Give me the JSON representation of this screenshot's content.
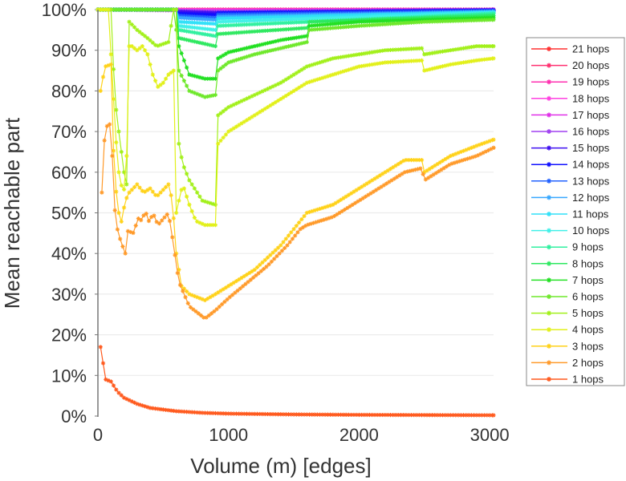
{
  "chart_data": {
    "type": "line",
    "title": "",
    "xlabel": "Volume (m) [edges]",
    "ylabel": "Mean reachable part",
    "xlim": [
      0,
      3030
    ],
    "ylim": [
      0,
      100
    ],
    "x_ticks": [
      "0",
      "1000",
      "2000",
      "3000"
    ],
    "x_tick_values": [
      0,
      1000,
      2000,
      3000
    ],
    "y_ticks": [
      "0%",
      "10%",
      "20%",
      "30%",
      "40%",
      "50%",
      "60%",
      "70%",
      "80%",
      "90%",
      "100%"
    ],
    "y_tick_values": [
      0,
      10,
      20,
      30,
      40,
      50,
      60,
      70,
      80,
      90,
      100
    ],
    "grid": "horizontal",
    "legend_position": "right",
    "series": [
      {
        "name": "1 hops",
        "color": "#ff5a1e",
        "points": [
          [
            20,
            17
          ],
          [
            60,
            9
          ],
          [
            100,
            8.5
          ],
          [
            150,
            6
          ],
          [
            200,
            4.5
          ],
          [
            300,
            3
          ],
          [
            400,
            2
          ],
          [
            600,
            1.2
          ],
          [
            800,
            0.8
          ],
          [
            1000,
            0.6
          ],
          [
            1500,
            0.4
          ],
          [
            2000,
            0.3
          ],
          [
            3030,
            0.2
          ]
        ]
      },
      {
        "name": "2 hops",
        "color": "#ff9a2a",
        "points": [
          [
            30,
            55
          ],
          [
            55,
            71
          ],
          [
            100,
            72
          ],
          [
            125,
            52
          ],
          [
            145,
            46.5
          ],
          [
            175,
            43
          ],
          [
            210,
            40
          ],
          [
            230,
            45.5
          ],
          [
            275,
            45
          ],
          [
            305,
            48.7
          ],
          [
            340,
            48
          ],
          [
            360,
            50.7
          ],
          [
            390,
            48
          ],
          [
            425,
            49.7
          ],
          [
            460,
            47
          ],
          [
            540,
            50
          ],
          [
            570,
            44
          ],
          [
            620,
            33
          ],
          [
            700,
            27
          ],
          [
            820,
            24
          ],
          [
            900,
            26
          ],
          [
            1000,
            29
          ],
          [
            1150,
            33
          ],
          [
            1300,
            37
          ],
          [
            1450,
            42
          ],
          [
            1550,
            46
          ],
          [
            1600,
            47
          ],
          [
            1800,
            49
          ],
          [
            2000,
            53
          ],
          [
            2200,
            57
          ],
          [
            2350,
            60
          ],
          [
            2480,
            61
          ],
          [
            2500,
            58
          ],
          [
            2700,
            62
          ],
          [
            2900,
            64
          ],
          [
            3030,
            66
          ]
        ]
      },
      {
        "name": "3 hops",
        "color": "#ffd21a",
        "points": [
          [
            20,
            80
          ],
          [
            55,
            86
          ],
          [
            100,
            86.5
          ],
          [
            125,
            60
          ],
          [
            150,
            52
          ],
          [
            175,
            47
          ],
          [
            210,
            53
          ],
          [
            240,
            55
          ],
          [
            300,
            57
          ],
          [
            350,
            55
          ],
          [
            400,
            56
          ],
          [
            450,
            54
          ],
          [
            540,
            57
          ],
          [
            570,
            53
          ],
          [
            600,
            40
          ],
          [
            640,
            32
          ],
          [
            700,
            30
          ],
          [
            820,
            28.5
          ],
          [
            900,
            30
          ],
          [
            1000,
            32
          ],
          [
            1200,
            36
          ],
          [
            1400,
            42
          ],
          [
            1550,
            48
          ],
          [
            1600,
            50
          ],
          [
            1800,
            52
          ],
          [
            2000,
            56
          ],
          [
            2200,
            60
          ],
          [
            2350,
            63
          ],
          [
            2480,
            63
          ],
          [
            2500,
            60
          ],
          [
            2700,
            64
          ],
          [
            2900,
            66.5
          ],
          [
            3030,
            68
          ]
        ]
      },
      {
        "name": "4 hops",
        "color": "#e2f01a",
        "points": [
          [
            0,
            100
          ],
          [
            80,
            100
          ],
          [
            120,
            78
          ],
          [
            150,
            62
          ],
          [
            175,
            57
          ],
          [
            215,
            55
          ],
          [
            235,
            91
          ],
          [
            260,
            91
          ],
          [
            300,
            90
          ],
          [
            340,
            91
          ],
          [
            380,
            89
          ],
          [
            420,
            84
          ],
          [
            460,
            81
          ],
          [
            500,
            82
          ],
          [
            540,
            84
          ],
          [
            580,
            85
          ],
          [
            600,
            50
          ],
          [
            620,
            53
          ],
          [
            650,
            57
          ],
          [
            700,
            52
          ],
          [
            750,
            48
          ],
          [
            820,
            47
          ],
          [
            900,
            47
          ],
          [
            920,
            67
          ],
          [
            1000,
            70
          ],
          [
            1200,
            74
          ],
          [
            1400,
            78
          ],
          [
            1550,
            81
          ],
          [
            1600,
            82
          ],
          [
            1800,
            84
          ],
          [
            2000,
            86
          ],
          [
            2200,
            87
          ],
          [
            2480,
            87.5
          ],
          [
            2500,
            85
          ],
          [
            2700,
            86.5
          ],
          [
            2900,
            87.5
          ],
          [
            3030,
            88
          ]
        ]
      },
      {
        "name": "5 hops",
        "color": "#a2f01a",
        "points": [
          [
            0,
            100
          ],
          [
            100,
            100
          ],
          [
            130,
            78
          ],
          [
            160,
            70
          ],
          [
            200,
            60
          ],
          [
            220,
            57
          ],
          [
            240,
            97
          ],
          [
            300,
            95
          ],
          [
            380,
            93
          ],
          [
            450,
            91
          ],
          [
            540,
            92
          ],
          [
            580,
            100
          ],
          [
            600,
            100
          ],
          [
            620,
            67
          ],
          [
            650,
            62
          ],
          [
            700,
            58
          ],
          [
            800,
            53
          ],
          [
            900,
            52
          ],
          [
            920,
            74
          ],
          [
            1000,
            76
          ],
          [
            1200,
            79
          ],
          [
            1400,
            82
          ],
          [
            1550,
            85
          ],
          [
            1600,
            86
          ],
          [
            1800,
            88
          ],
          [
            2000,
            89
          ],
          [
            2200,
            90
          ],
          [
            2480,
            90.5
          ],
          [
            2500,
            89
          ],
          [
            2700,
            90
          ],
          [
            2900,
            91
          ],
          [
            3030,
            91
          ]
        ]
      },
      {
        "name": "6 hops",
        "color": "#6ee82a",
        "points": [
          [
            0,
            100
          ],
          [
            590,
            100
          ],
          [
            620,
            85
          ],
          [
            700,
            80
          ],
          [
            820,
            78.5
          ],
          [
            900,
            79
          ],
          [
            920,
            85
          ],
          [
            1000,
            87
          ],
          [
            1200,
            89
          ],
          [
            1400,
            90.5
          ],
          [
            1600,
            92
          ],
          [
            1620,
            95
          ],
          [
            2000,
            96
          ],
          [
            2500,
            97
          ],
          [
            3030,
            97.5
          ]
        ]
      },
      {
        "name": "7 hops",
        "color": "#22e022",
        "points": [
          [
            0,
            100
          ],
          [
            600,
            100
          ],
          [
            620,
            91
          ],
          [
            700,
            84
          ],
          [
            820,
            83
          ],
          [
            900,
            83
          ],
          [
            920,
            88
          ],
          [
            1000,
            89.5
          ],
          [
            1200,
            91
          ],
          [
            1400,
            92.5
          ],
          [
            1600,
            93.5
          ],
          [
            1620,
            96
          ],
          [
            2000,
            97
          ],
          [
            3030,
            98
          ]
        ]
      },
      {
        "name": "8 hops",
        "color": "#2ee860",
        "points": [
          [
            0,
            100
          ],
          [
            600,
            100
          ],
          [
            620,
            93
          ],
          [
            900,
            91
          ],
          [
            920,
            94
          ],
          [
            1600,
            95.5
          ],
          [
            1620,
            97
          ],
          [
            3030,
            98.5
          ]
        ]
      },
      {
        "name": "9 hops",
        "color": "#30f0a0",
        "points": [
          [
            0,
            100
          ],
          [
            600,
            100
          ],
          [
            620,
            95
          ],
          [
            900,
            93.5
          ],
          [
            920,
            96
          ],
          [
            3030,
            99
          ]
        ]
      },
      {
        "name": "10 hops",
        "color": "#40f0e8",
        "points": [
          [
            0,
            100
          ],
          [
            600,
            100
          ],
          [
            620,
            96
          ],
          [
            900,
            95
          ],
          [
            920,
            97
          ],
          [
            3030,
            99.2
          ]
        ]
      },
      {
        "name": "11 hops",
        "color": "#30e0f8",
        "points": [
          [
            0,
            100
          ],
          [
            600,
            100
          ],
          [
            620,
            97
          ],
          [
            900,
            96.5
          ],
          [
            920,
            97.8
          ],
          [
            3030,
            99.4
          ]
        ]
      },
      {
        "name": "12 hops",
        "color": "#38a8ff",
        "points": [
          [
            0,
            100
          ],
          [
            600,
            100
          ],
          [
            620,
            98
          ],
          [
            900,
            97.5
          ],
          [
            920,
            98.3
          ],
          [
            3030,
            99.5
          ]
        ]
      },
      {
        "name": "13 hops",
        "color": "#2060ff",
        "points": [
          [
            0,
            100
          ],
          [
            600,
            100
          ],
          [
            620,
            98.5
          ],
          [
            900,
            98
          ],
          [
            920,
            98.8
          ],
          [
            3030,
            99.7
          ]
        ]
      },
      {
        "name": "14 hops",
        "color": "#1010ff",
        "points": [
          [
            0,
            100
          ],
          [
            600,
            100
          ],
          [
            620,
            99
          ],
          [
            900,
            98.7
          ],
          [
            920,
            99.2
          ],
          [
            3030,
            99.8
          ]
        ]
      },
      {
        "name": "15 hops",
        "color": "#4010f0",
        "points": [
          [
            0,
            100
          ],
          [
            600,
            100
          ],
          [
            620,
            99.5
          ],
          [
            900,
            99.2
          ],
          [
            3030,
            99.9
          ]
        ]
      },
      {
        "name": "16 hops",
        "color": "#a040f0",
        "points": [
          [
            0,
            100
          ],
          [
            600,
            100
          ],
          [
            620,
            99.7
          ],
          [
            900,
            99.5
          ],
          [
            3030,
            100
          ]
        ]
      },
      {
        "name": "17 hops",
        "color": "#e030e8",
        "points": [
          [
            0,
            100
          ],
          [
            620,
            99.8
          ],
          [
            900,
            99.7
          ],
          [
            3030,
            100
          ]
        ]
      },
      {
        "name": "18 hops",
        "color": "#ff40e0",
        "points": [
          [
            0,
            100
          ],
          [
            620,
            99.9
          ],
          [
            900,
            99.8
          ],
          [
            3030,
            100
          ]
        ]
      },
      {
        "name": "19 hops",
        "color": "#ff30b0",
        "points": [
          [
            0,
            100
          ],
          [
            3030,
            100
          ]
        ]
      },
      {
        "name": "20 hops",
        "color": "#ff3070",
        "points": [
          [
            0,
            100
          ],
          [
            3030,
            100
          ]
        ]
      },
      {
        "name": "21 hops",
        "color": "#ff3030",
        "points": [
          [
            0,
            100
          ],
          [
            3030,
            100
          ]
        ]
      }
    ]
  }
}
